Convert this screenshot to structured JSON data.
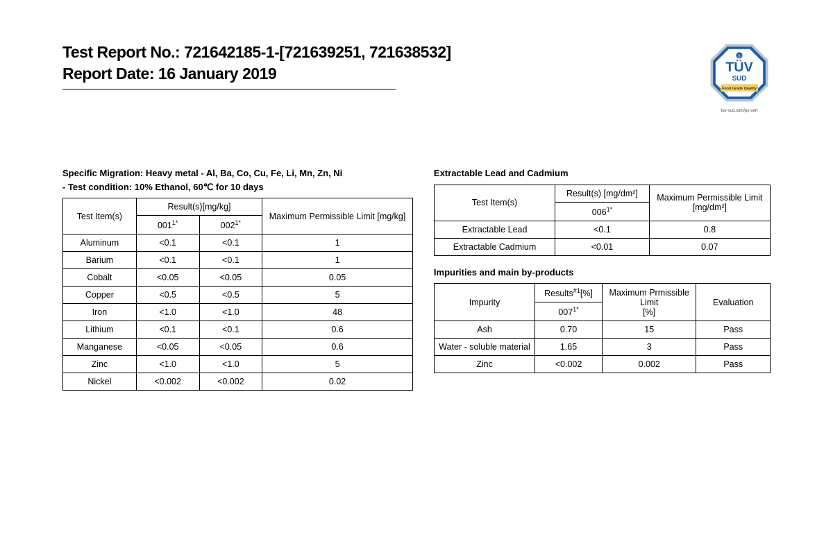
{
  "header": {
    "line1": "Test Report No.: 721642185-1-[721639251, 721638532]",
    "line2": "Report Date: 16 January 2019"
  },
  "logo": {
    "top_text": "TÜV",
    "sub_text": "SUD",
    "banner_text": "Food Grade Quality",
    "caption": "tuv-sud.com/ps-cert",
    "octagon_fill": "#1a5ba8",
    "octagon_stroke": "#b8c4d0",
    "center_fill": "#ffffff",
    "banner_fill": "#f4d35e"
  },
  "colors": {
    "text": "#000000",
    "border": "#000000",
    "bg": "#ffffff"
  },
  "heavy_metal": {
    "title_line1": "Specific Migration: Heavy metal - Al, Ba, Co, Cu, Fe, Li, Mn, Zn, Ni",
    "title_line2": "- Test condition: 10% Ethanol, 60℃ for 10 days",
    "h_test_items": "Test Item(s)",
    "h_results": "Result(s)[mg/kg]",
    "h_limit": "Maximum Permissible Limit [mg/kg]",
    "h_col_001": "001",
    "h_col_001_sup": "1*",
    "h_col_002": "002",
    "h_col_002_sup": "1*",
    "rows": [
      {
        "name": "Aluminum",
        "r1": "<0.1",
        "r2": "<0.1",
        "lim": "1"
      },
      {
        "name": "Barium",
        "r1": "<0.1",
        "r2": "<0.1",
        "lim": "1"
      },
      {
        "name": "Cobalt",
        "r1": "<0.05",
        "r2": "<0.05",
        "lim": "0.05"
      },
      {
        "name": "Copper",
        "r1": "<0.5",
        "r2": "<0.5",
        "lim": "5"
      },
      {
        "name": "Iron",
        "r1": "<1.0",
        "r2": "<1.0",
        "lim": "48"
      },
      {
        "name": "Lithium",
        "r1": "<0.1",
        "r2": "<0.1",
        "lim": "0.6"
      },
      {
        "name": "Manganese",
        "r1": "<0.05",
        "r2": "<0.05",
        "lim": "0.6"
      },
      {
        "name": "Zinc",
        "r1": "<1.0",
        "r2": "<1.0",
        "lim": "5"
      },
      {
        "name": "Nickel",
        "r1": "<0.002",
        "r2": "<0.002",
        "lim": "0.02"
      }
    ]
  },
  "lead_cadmium": {
    "title": "Extractable Lead and Cadmium",
    "h_test_items": "Test Item(s)",
    "h_results": "Result(s) [mg/dm²]",
    "h_limit": "Maximum Permissible Limit [mg/dm²]",
    "h_col_006": "006",
    "h_col_006_sup": "1*",
    "rows": [
      {
        "name": "Extractable Lead",
        "r": "<0.1",
        "lim": "0.8"
      },
      {
        "name": "Extractable Cadmium",
        "r": "<0.01",
        "lim": "0.07"
      }
    ]
  },
  "impurities": {
    "title": "Impurities and main by-products",
    "h_impurity": "Impurity",
    "h_results": "Results",
    "h_results_sup": "#1",
    "h_results_unit": "[%]",
    "h_limit_l1": "Maximum Prmissible Limit",
    "h_limit_l2": "[%]",
    "h_eval": "Evaluation",
    "h_col_007": "007",
    "h_col_007_sup": "1*",
    "rows": [
      {
        "name": "Ash",
        "r": "0.70",
        "lim": "15",
        "eval": "Pass"
      },
      {
        "name": "Water - soluble material",
        "r": "1.65",
        "lim": "3",
        "eval": "Pass"
      },
      {
        "name": "Zinc",
        "r": "<0.002",
        "lim": "0.002",
        "eval": "Pass"
      }
    ]
  }
}
